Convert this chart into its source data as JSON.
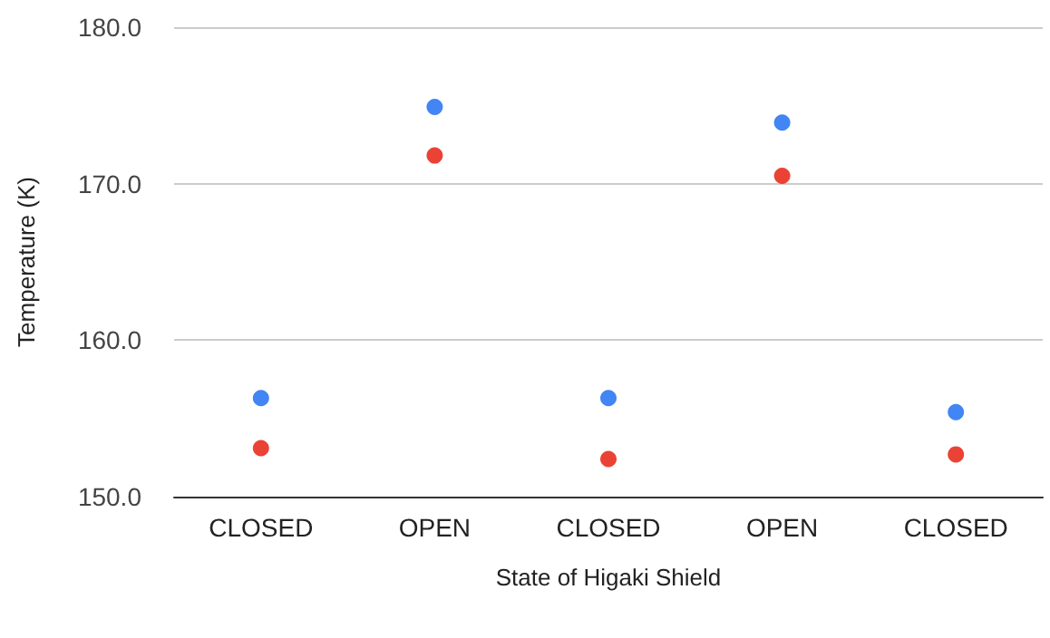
{
  "chart_data": {
    "type": "scatter",
    "xlabel": "State of Higaki Shield",
    "ylabel": "Temperature (K)",
    "categories": [
      "CLOSED",
      "OPEN",
      "CLOSED",
      "OPEN",
      "CLOSED"
    ],
    "series": [
      {
        "color": "#4285f4",
        "values": [
          156.3,
          174.9,
          156.3,
          173.9,
          155.4
        ]
      },
      {
        "color": "#ea4335",
        "values": [
          153.1,
          171.8,
          152.4,
          170.5,
          152.7
        ]
      }
    ],
    "ylim": [
      150,
      180
    ],
    "yticks": [
      {
        "value": 150,
        "label": "150.0"
      },
      {
        "value": 160,
        "label": "160.0"
      },
      {
        "value": 170,
        "label": "170.0"
      },
      {
        "value": 180,
        "label": "180.0"
      }
    ],
    "grid": "y",
    "marker": "circle"
  }
}
